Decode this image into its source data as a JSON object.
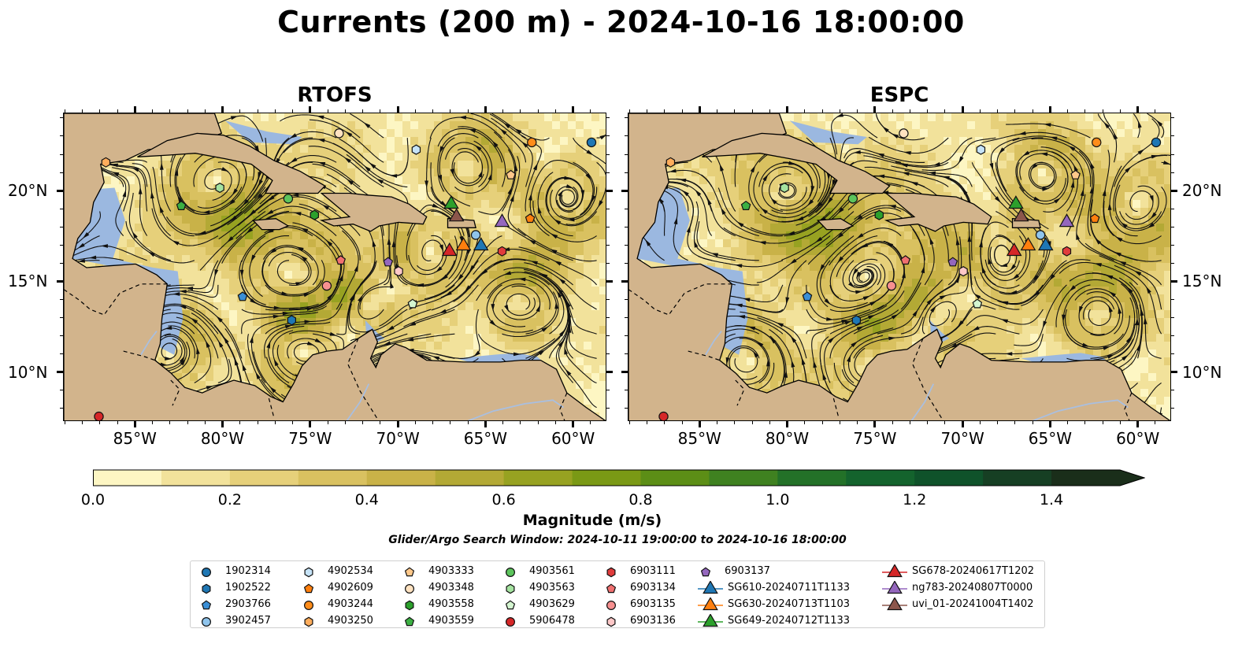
{
  "title": "Currents (200 m) - 2024-10-16 18:00:00",
  "panels": [
    {
      "title": "RTOFS"
    },
    {
      "title": "ESPC"
    }
  ],
  "axes": {
    "lon_ticks": [
      "85°W",
      "80°W",
      "75°W",
      "70°W",
      "65°W",
      "60°W"
    ],
    "lon_values": [
      -85,
      -80,
      -75,
      -70,
      -65,
      -60
    ],
    "lat_ticks": [
      "20°N",
      "15°N",
      "10°N"
    ],
    "lat_values": [
      20,
      15,
      10
    ],
    "lon_range": [
      -89.1,
      -58.1
    ],
    "lat_range": [
      7.3,
      24.3
    ]
  },
  "colorbar": {
    "title": "Magnitude (m/s)",
    "ticks": [
      "0.0",
      "0.2",
      "0.4",
      "0.6",
      "0.8",
      "1.0",
      "1.2",
      "1.4"
    ],
    "tick_values": [
      0,
      0.2,
      0.4,
      0.6,
      0.8,
      1.0,
      1.2,
      1.4
    ],
    "range": [
      0,
      1.5
    ],
    "colors": [
      "#fdf6c3",
      "#f2e29b",
      "#e6d07a",
      "#d9c160",
      "#c9b248",
      "#b3a935",
      "#97a221",
      "#7a9915",
      "#5c8e16",
      "#3f8120",
      "#237128",
      "#14632d",
      "#0f522a",
      "#163f23",
      "#1a2e1a"
    ]
  },
  "search_window": "Glider/Argo Search Window: 2024-10-11 19:00:00 to 2024-10-16 18:00:00",
  "legend": {
    "columns": [
      [
        {
          "label": "1902314",
          "shape": "circle",
          "color": "#1f77b4"
        },
        {
          "label": "1902522",
          "shape": "hexagon",
          "color": "#1f77b4"
        },
        {
          "label": "2903766",
          "shape": "pentagon",
          "color": "#3b8fd6"
        },
        {
          "label": "3902457",
          "shape": "circle",
          "color": "#8fc4ec"
        }
      ],
      [
        {
          "label": "4902534",
          "shape": "hexagon",
          "color": "#c6e3f7"
        },
        {
          "label": "4902609",
          "shape": "pentagon",
          "color": "#ff7f0e"
        },
        {
          "label": "4903244",
          "shape": "circle",
          "color": "#ff8c1a"
        },
        {
          "label": "4903250",
          "shape": "hexagon",
          "color": "#ffad5c"
        }
      ],
      [
        {
          "label": "4903333",
          "shape": "pentagon",
          "color": "#ffc88a"
        },
        {
          "label": "4903348",
          "shape": "circle",
          "color": "#ffe2c0"
        },
        {
          "label": "4903558",
          "shape": "hexagon",
          "color": "#2ca02c"
        },
        {
          "label": "4903559",
          "shape": "pentagon",
          "color": "#3cb043"
        }
      ],
      [
        {
          "label": "4903561",
          "shape": "circle",
          "color": "#5cc45c"
        },
        {
          "label": "4903563",
          "shape": "hexagon",
          "color": "#a5e3a0"
        },
        {
          "label": "4903629",
          "shape": "pentagon",
          "color": "#d4f5d0"
        },
        {
          "label": "5906478",
          "shape": "circle",
          "color": "#d62728"
        }
      ],
      [
        {
          "label": "6903111",
          "shape": "hexagon",
          "color": "#e03c3c"
        },
        {
          "label": "6903134",
          "shape": "pentagon",
          "color": "#f07070"
        },
        {
          "label": "6903135",
          "shape": "circle",
          "color": "#f79090"
        },
        {
          "label": "6903136",
          "shape": "hexagon",
          "color": "#fdc8c8"
        }
      ],
      [
        {
          "label": "6903137",
          "shape": "pentagon",
          "color": "#9467bd"
        },
        {
          "label": "SG610-20240711T1133",
          "shape": "triangle",
          "color": "#1f77b4"
        },
        {
          "label": "SG630-20240713T1103",
          "shape": "triangle",
          "color": "#ff7f0e"
        },
        {
          "label": "SG649-20240712T1133",
          "shape": "triangle",
          "color": "#2ca02c"
        }
      ],
      [
        {
          "label": "SG678-20240617T1202",
          "shape": "triangle",
          "color": "#d62728"
        },
        {
          "label": "ng783-20240807T0000",
          "shape": "triangle",
          "color": "#9467bd"
        },
        {
          "label": "uvi_01-20241004T1402",
          "shape": "triangle",
          "color": "#8c564b"
        }
      ]
    ]
  },
  "platforms": [
    {
      "id": "1902314",
      "lon": -59.0,
      "lat": 22.7
    },
    {
      "id": "1902522",
      "lon": -76.1,
      "lat": 12.9
    },
    {
      "id": "2903766",
      "lon": -78.9,
      "lat": 14.2
    },
    {
      "id": "3902457",
      "lon": -65.6,
      "lat": 17.6
    },
    {
      "id": "4902534",
      "lon": -69.0,
      "lat": 22.3
    },
    {
      "id": "4902609",
      "lon": -62.5,
      "lat": 18.5
    },
    {
      "id": "4903244",
      "lon": -62.4,
      "lat": 22.7
    },
    {
      "id": "4903250",
      "lon": -86.7,
      "lat": 21.6
    },
    {
      "id": "4903333",
      "lon": -63.6,
      "lat": 20.9
    },
    {
      "id": "4903348",
      "lon": -73.4,
      "lat": 23.2
    },
    {
      "id": "4903558",
      "lon": -74.8,
      "lat": 18.7
    },
    {
      "id": "4903559",
      "lon": -82.4,
      "lat": 19.2
    },
    {
      "id": "4903561",
      "lon": -76.3,
      "lat": 19.6
    },
    {
      "id": "4903563",
      "lon": -80.2,
      "lat": 20.2
    },
    {
      "id": "4903629",
      "lon": -69.2,
      "lat": 13.8
    },
    {
      "id": "5906478",
      "lon": -87.1,
      "lat": 7.6
    },
    {
      "id": "6903111",
      "lon": -64.1,
      "lat": 16.7
    },
    {
      "id": "6903134",
      "lon": -73.3,
      "lat": 16.2
    },
    {
      "id": "6903135",
      "lon": -74.1,
      "lat": 14.8
    },
    {
      "id": "6903136",
      "lon": -70.0,
      "lat": 15.6
    },
    {
      "id": "6903137",
      "lon": -70.6,
      "lat": 16.1
    },
    {
      "id": "SG610-20240711T1133",
      "lon": -65.3,
      "lat": 17.1
    },
    {
      "id": "SG630-20240713T1103",
      "lon": -66.3,
      "lat": 17.1
    },
    {
      "id": "SG649-20240712T1133",
      "lon": -67.0,
      "lat": 19.4
    },
    {
      "id": "SG678-20240617T1202",
      "lon": -67.1,
      "lat": 16.8
    },
    {
      "id": "ng783-20240807T0000",
      "lon": -64.1,
      "lat": 18.4
    },
    {
      "id": "uvi_01-20241004T1402",
      "lon": -66.7,
      "lat": 18.7
    }
  ],
  "land_color": "#d2b48c",
  "water_color": "#9bb8e0"
}
